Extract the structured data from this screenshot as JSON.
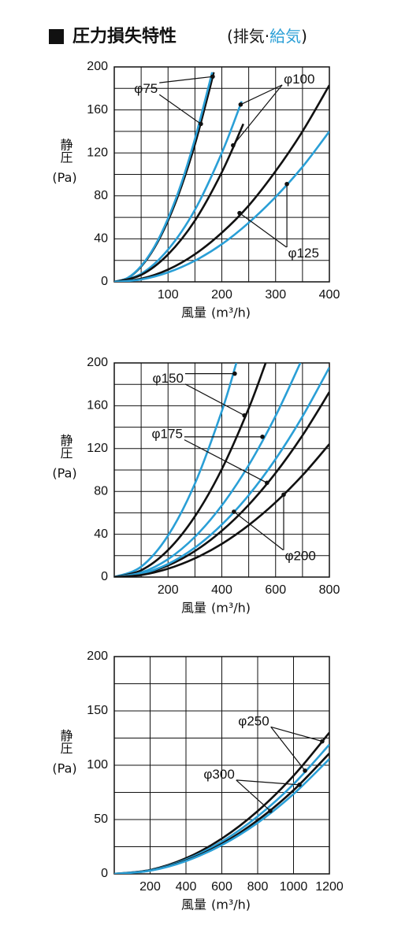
{
  "header": {
    "title": "圧力損失特性",
    "subtitle": [
      "(排気·",
      "給気",
      ")"
    ],
    "subtitle_colors": [
      "#111111",
      "#2a9fd6",
      "#111111"
    ]
  },
  "chart_data": [
    {
      "type": "line",
      "xlim": [
        0,
        400
      ],
      "ylim": [
        0,
        200
      ],
      "xticks": [
        100,
        200,
        300,
        400
      ],
      "yticks": [
        0,
        40,
        80,
        120,
        160,
        200
      ],
      "xgrid": [
        50,
        100,
        150,
        200,
        250,
        300,
        350
      ],
      "ygrid": [
        20,
        40,
        60,
        80,
        100,
        120,
        140,
        160,
        180
      ],
      "ylabel": "静圧",
      "ylabel_unit": "(Pa)",
      "xlabel": "風量",
      "xlabel_unit": "(m³/h)",
      "series": [
        {
          "color": "#111111",
          "x": [
            0,
            25,
            50,
            75,
            100,
            125,
            150,
            175,
            185
          ],
          "values": [
            0,
            3.6,
            14.3,
            32,
            57,
            89,
            128,
            175,
            195
          ]
        },
        {
          "color": "#2a9fd6",
          "x": [
            0,
            25,
            50,
            75,
            100,
            125,
            150,
            175,
            182
          ],
          "values": [
            0,
            3.7,
            14.8,
            33,
            59,
            92,
            133,
            181,
            195
          ]
        },
        {
          "color": "#2a9fd6",
          "x": [
            0,
            50,
            100,
            150,
            200,
            237
          ],
          "values": [
            0,
            7.5,
            30,
            67,
            120,
            168
          ]
        },
        {
          "color": "#111111",
          "x": [
            0,
            50,
            100,
            150,
            200,
            240
          ],
          "values": [
            0,
            6.4,
            25.5,
            57,
            102,
            147
          ]
        },
        {
          "color": "#111111",
          "x": [
            0,
            50,
            100,
            150,
            200,
            250,
            300,
            350,
            400
          ],
          "values": [
            0,
            2.9,
            11.4,
            25.7,
            45.7,
            71,
            103,
            140,
            183
          ]
        },
        {
          "color": "#2a9fd6",
          "x": [
            0,
            50,
            100,
            150,
            200,
            250,
            300,
            350,
            400
          ],
          "values": [
            0,
            2.2,
            8.8,
            19.7,
            35,
            55,
            79,
            107,
            140
          ]
        }
      ],
      "annotations": [
        {
          "text": "φ75",
          "x": 59,
          "y": 179,
          "points": [
            [
              183,
              191
            ],
            [
              161,
              147
            ]
          ]
        },
        {
          "text": "φ100",
          "x": 344,
          "y": 188,
          "points": [
            [
              235,
              165
            ],
            [
              221,
              127
            ]
          ]
        },
        {
          "text": "φ125",
          "x": 352,
          "y": 26,
          "points": [
            [
              233,
              64
            ],
            [
              321,
              91
            ]
          ]
        }
      ]
    },
    {
      "type": "line",
      "xlim": [
        0,
        800
      ],
      "ylim": [
        0,
        200
      ],
      "xticks": [
        200,
        400,
        600,
        800
      ],
      "yticks": [
        0,
        40,
        80,
        120,
        160,
        200
      ],
      "xgrid": [
        100,
        200,
        300,
        400,
        500,
        600,
        700
      ],
      "ygrid": [
        20,
        40,
        60,
        80,
        100,
        120,
        140,
        160,
        180
      ],
      "ylabel": "静圧",
      "ylabel_unit": "(Pa)",
      "xlabel": "風量",
      "xlabel_unit": "(m³/h)",
      "series": [
        {
          "color": "#2a9fd6",
          "x": [
            0,
            100,
            200,
            300,
            400,
            454
          ],
          "values": [
            0,
            9.7,
            38.8,
            87.3,
            155,
            200
          ]
        },
        {
          "color": "#111111",
          "x": [
            0,
            100,
            200,
            300,
            400,
            500,
            563
          ],
          "values": [
            0,
            6.3,
            25.2,
            56.7,
            100.8,
            157.5,
            200
          ]
        },
        {
          "color": "#2a9fd6",
          "x": [
            0,
            100,
            200,
            300,
            400,
            500,
            600,
            692
          ],
          "values": [
            0,
            4.2,
            16.7,
            37.6,
            66.9,
            104.5,
            150.5,
            200
          ]
        },
        {
          "color": "#111111",
          "x": [
            0,
            100,
            200,
            300,
            400,
            500,
            600,
            700,
            800
          ],
          "values": [
            0,
            2.7,
            10.8,
            24.3,
            43.2,
            67.5,
            97.2,
            132.3,
            172.8
          ]
        },
        {
          "color": "#2a9fd6",
          "x": [
            0,
            100,
            200,
            300,
            400,
            500,
            600,
            700,
            800
          ],
          "values": [
            0,
            3.1,
            12.2,
            27.5,
            49,
            76.5,
            110.2,
            150,
            195.8
          ]
        },
        {
          "color": "#111111",
          "x": [
            0,
            100,
            200,
            300,
            400,
            500,
            600,
            700,
            800
          ],
          "values": [
            0,
            1.9,
            7.8,
            17.5,
            31,
            48.5,
            69.8,
            95,
            124.2
          ]
        }
      ],
      "annotations": [
        {
          "text": "φ150",
          "x": 200,
          "y": 185,
          "points": [
            [
              448,
              190
            ],
            [
              484,
              151
            ]
          ]
        },
        {
          "text": "φ175",
          "x": 197,
          "y": 133,
          "points": [
            [
              551,
              131
            ],
            [
              568,
              88
            ]
          ]
        },
        {
          "text": "φ200",
          "x": 692,
          "y": 19,
          "points": [
            [
              445,
              61
            ],
            [
              630,
              77
            ]
          ]
        }
      ]
    },
    {
      "type": "line",
      "xlim": [
        0,
        1200
      ],
      "ylim": [
        0,
        200
      ],
      "xticks": [
        200,
        400,
        600,
        800,
        1000,
        1200
      ],
      "yticks": [
        0,
        50,
        100,
        150,
        200
      ],
      "xgrid": [
        200,
        400,
        600,
        800,
        1000
      ],
      "ygrid": [
        25,
        50,
        75,
        100,
        125,
        150,
        175
      ],
      "ylabel": "静圧",
      "ylabel_unit": "(Pa)",
      "xlabel": "風量",
      "xlabel_unit": "(m³/h)",
      "series": [
        {
          "color": "#111111",
          "x": [
            0,
            200,
            400,
            600,
            800,
            1000,
            1200
          ],
          "values": [
            0,
            3.6,
            14.4,
            32.5,
            57.8,
            90.3,
            130
          ]
        },
        {
          "color": "#2a9fd6",
          "x": [
            0,
            200,
            400,
            600,
            800,
            1000,
            1200
          ],
          "values": [
            0,
            3.3,
            13.2,
            29.7,
            52.9,
            82.6,
            119
          ]
        },
        {
          "color": "#111111",
          "x": [
            0,
            200,
            400,
            600,
            800,
            1000,
            1200
          ],
          "values": [
            0,
            3.1,
            12.3,
            27.7,
            49.3,
            77,
            110.9
          ]
        },
        {
          "color": "#2a9fd6",
          "x": [
            0,
            200,
            400,
            600,
            800,
            1000,
            1200
          ],
          "values": [
            0,
            2.9,
            11.8,
            26.5,
            47,
            73.5,
            105.8
          ]
        }
      ],
      "annotations": [
        {
          "text": "φ250",
          "x": 778,
          "y": 140,
          "points": [
            [
              1160,
              122
            ],
            [
              1064,
              95
            ]
          ]
        },
        {
          "text": "φ300",
          "x": 585,
          "y": 91,
          "points": [
            [
              870,
              58
            ],
            [
              1033,
              82
            ]
          ]
        }
      ]
    }
  ]
}
